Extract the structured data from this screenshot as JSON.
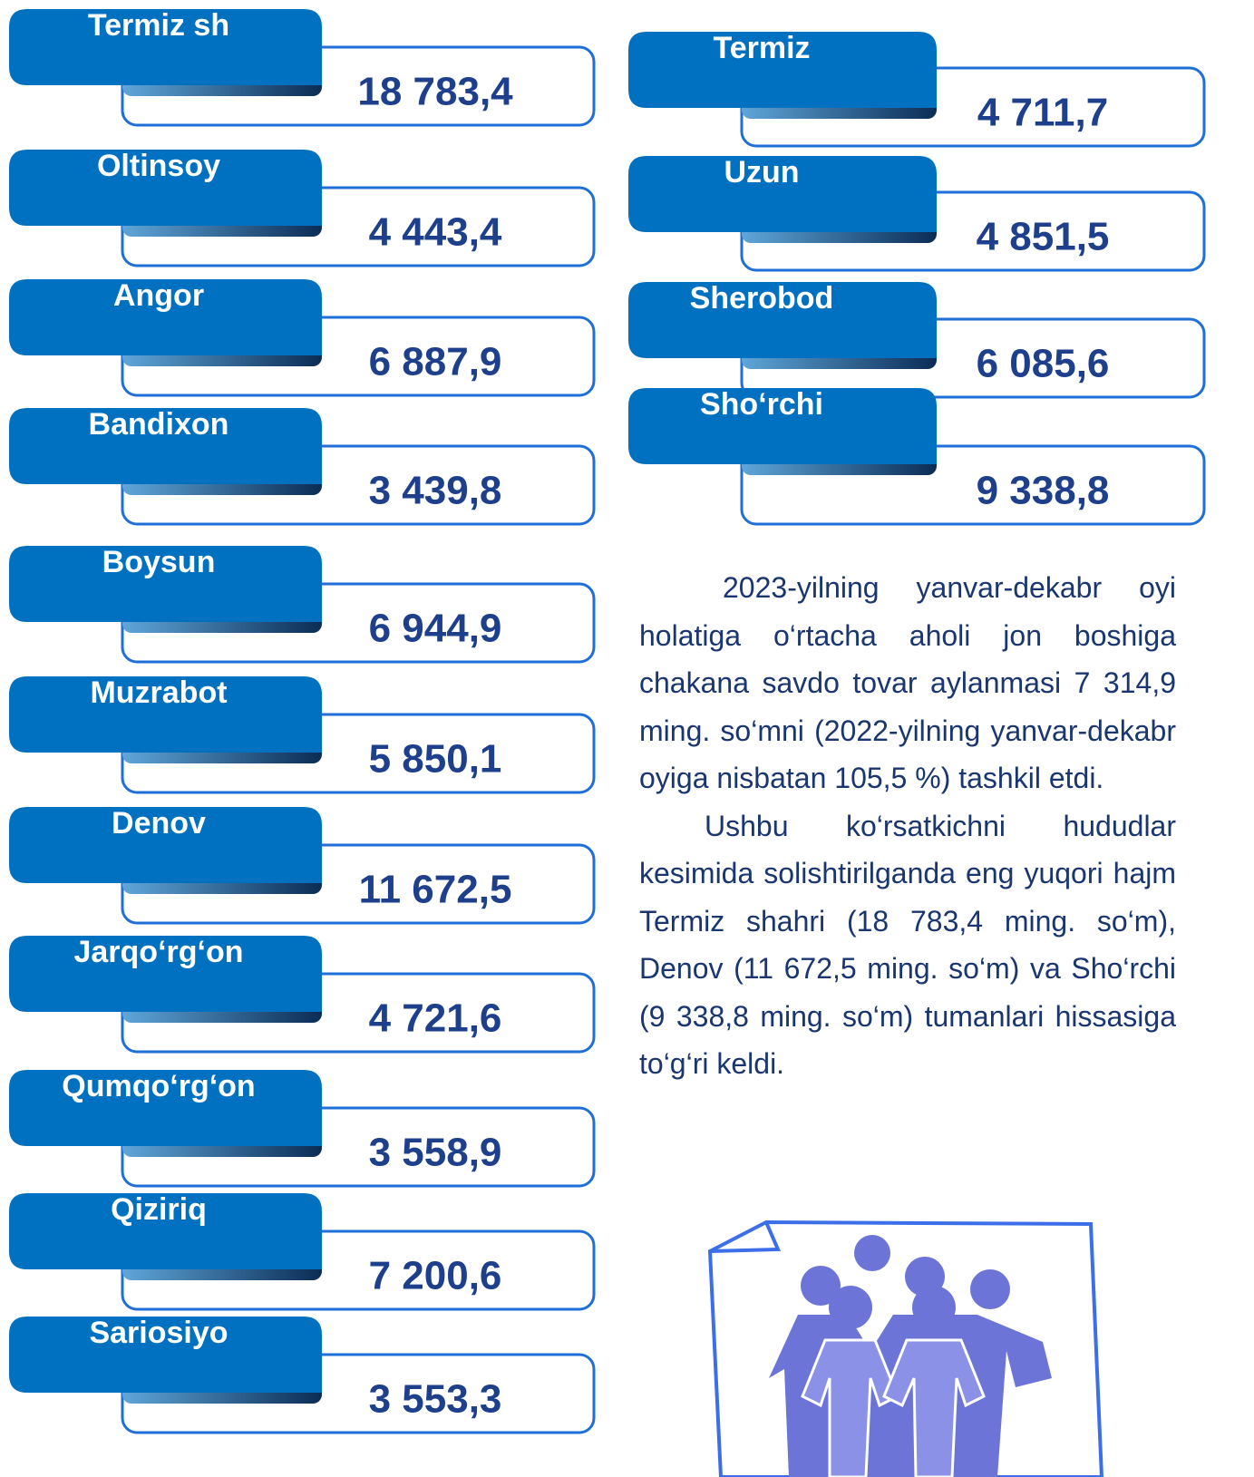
{
  "left": [
    {
      "name": "Termiz sh",
      "value": "18 783,4"
    },
    {
      "name": "Oltinsoy",
      "value": "4 443,4"
    },
    {
      "name": "Angor",
      "value": "6 887,9"
    },
    {
      "name": "Bandixon",
      "value": "3 439,8"
    },
    {
      "name": "Boysun",
      "value": "6 944,9"
    },
    {
      "name": "Muzrabot",
      "value": "5 850,1"
    },
    {
      "name": "Denov",
      "value": "11 672,5"
    },
    {
      "name": "Jarqo‘rg‘on",
      "value": "4 721,6"
    },
    {
      "name": "Qumqo‘rg‘on",
      "value": "3 558,9"
    },
    {
      "name": "Qiziriq",
      "value": "7 200,6"
    },
    {
      "name": "Sariosiyo",
      "value": "3 553,3"
    }
  ],
  "right": [
    {
      "name": "Termiz",
      "value": "4 711,7"
    },
    {
      "name": "Uzun",
      "value": "4 851,5"
    },
    {
      "name": "Sherobod",
      "value": "6 085,6"
    },
    {
      "name": "Sho‘rchi",
      "value": "9 338,8"
    }
  ],
  "paragraphs": [
    "2023-yilning yanvar-dekabr oyi holatiga o‘rtacha aholi jon boshiga chakana savdo tovar aylanmasi 7 314,9 ming. so‘mni (2022-yilning yanvar-dekabr oyiga nisbatan 105,5 %) tashkil etdi.",
    "Ushbu ko‘rsatkichni hududlar kesimida solishtirilganda eng yuqori hajm Termiz shahri (18 783,4 ming. so‘m), Denov (11 672,5 ming. so‘m) va Sho‘rchi  (9 338,8 ming. so‘m) tumanlari hissasiga to‘g‘ri keldi."
  ]
}
